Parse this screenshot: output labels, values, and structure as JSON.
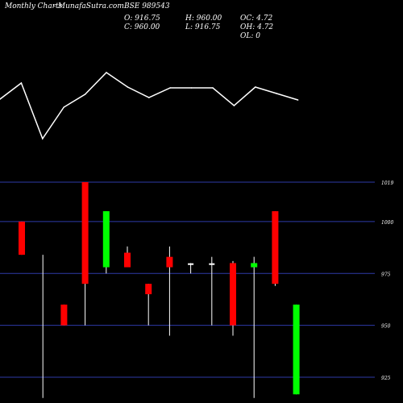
{
  "header": {
    "brand_left": "Monthly Charts",
    "brand_site": "- MunafaSutra.com",
    "symbol": "BSE 989543",
    "open": "O: 916.75",
    "close": "C: 960.00",
    "high": "H: 960.00",
    "low": "L: 916.75",
    "oc": "OC: 4.72",
    "oh": "OH: 4.72",
    "ol": "OL: 0"
  },
  "colors": {
    "background": "#000000",
    "up": "#00ff00",
    "down": "#ff0000",
    "grid": "#2e3aa8",
    "wick": "#ffffff",
    "line": "#ffffff",
    "label": "#ffffff"
  },
  "chart_data": [
    {
      "type": "line",
      "title": "",
      "x": [
        1,
        2,
        3,
        4,
        5,
        6,
        7,
        8,
        9,
        10,
        11,
        12,
        13,
        14,
        15
      ],
      "y": [
        123,
        103,
        172,
        133,
        117,
        90,
        108,
        121,
        109,
        109,
        109,
        131,
        108,
        116,
        124
      ]
    },
    {
      "type": "candlestick",
      "title": "",
      "y_ticks": [
        "1019",
        "1000",
        "975",
        "950",
        "925"
      ],
      "y_tick_values": [
        1019,
        1000,
        975,
        950,
        925
      ],
      "ylim": [
        915,
        1023
      ],
      "grid": true,
      "candles": [
        {
          "open": 1000,
          "close": 984,
          "high": 1000,
          "low": 984,
          "direction": "down"
        },
        {
          "open": null,
          "close": null,
          "high": 984,
          "low": 915,
          "direction": "none"
        },
        {
          "open": 960,
          "close": 950,
          "high": 960,
          "low": 950,
          "direction": "down"
        },
        {
          "open": 1019,
          "close": 970,
          "high": 1019,
          "low": 950,
          "direction": "down"
        },
        {
          "open": 978,
          "close": 1005,
          "high": 1005,
          "low": 975,
          "direction": "up"
        },
        {
          "open": 985,
          "close": 978,
          "high": 988,
          "low": 978,
          "direction": "down"
        },
        {
          "open": 970,
          "close": 965,
          "high": 970,
          "low": 950,
          "direction": "down"
        },
        {
          "open": 983,
          "close": 978,
          "high": 988,
          "low": 945,
          "direction": "down"
        },
        {
          "open": 979.5,
          "close": 979.5,
          "high": 980,
          "low": 975,
          "direction": "flat"
        },
        {
          "open": 979.5,
          "close": 979.5,
          "high": 983,
          "low": 950,
          "direction": "flat"
        },
        {
          "open": 980,
          "close": 950,
          "high": 981,
          "low": 945,
          "direction": "down"
        },
        {
          "open": 978,
          "close": 980,
          "high": 983,
          "low": 915,
          "direction": "up"
        },
        {
          "open": 1005,
          "close": 970,
          "high": 1005,
          "low": 969,
          "direction": "down"
        },
        {
          "open": 916.75,
          "close": 960,
          "high": 960,
          "low": 916.75,
          "direction": "up"
        }
      ]
    }
  ]
}
